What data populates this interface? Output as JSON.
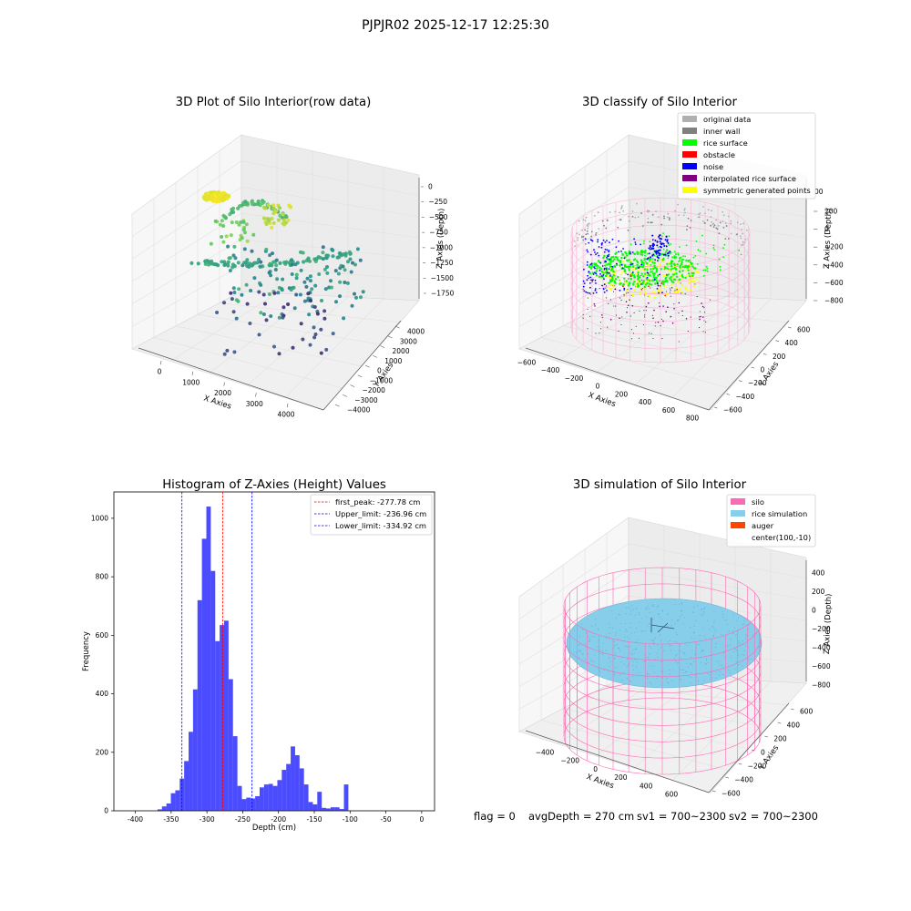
{
  "figure_title": "PJPJR02 2025-12-17 12:25:30",
  "footer": {
    "flag": "flag = 0",
    "avg_depth": "avgDepth = 270 cm",
    "sv1": "sv1 = 700~2300",
    "sv2": "sv2 = 700~2300"
  },
  "chart_data": [
    {
      "type": "scatter",
      "projection": "3d",
      "title": "3D Plot of Silo Interior(row data)",
      "xlabel": "X Axies",
      "ylabel": "Y Axies",
      "zlabel": "Z Axies (Depth)",
      "x_ticks": [
        "0",
        "1000",
        "2000",
        "3000",
        "4000"
      ],
      "y_ticks": [
        "−4000",
        "−3000",
        "−2000",
        "−1000",
        "0",
        "1000",
        "2000",
        "3000",
        "4000"
      ],
      "z_ticks": [
        "0",
        "−250",
        "−500",
        "−750",
        "−1000",
        "−1250",
        "−1500",
        "−1750"
      ],
      "colormap": "viridis"
    },
    {
      "type": "scatter",
      "projection": "3d",
      "title": "3D classify of Silo Interior",
      "xlabel": "X Axies",
      "ylabel": "Y Axies",
      "zlabel": "Z Axies (Depth)",
      "x_ticks": [
        "−600",
        "−400",
        "−200",
        "0",
        "200",
        "400",
        "600",
        "800"
      ],
      "y_ticks": [
        "−600",
        "−400",
        "−200",
        "0",
        "200",
        "400",
        "600"
      ],
      "z_ticks": [
        "200",
        "0",
        "−200",
        "−400",
        "−600",
        "−800"
      ],
      "z_tick_partial": "00",
      "legend_position": "upper-right",
      "legend": [
        {
          "label": "original data",
          "color": "#b0b0b0"
        },
        {
          "label": "inner wall",
          "color": "#808080"
        },
        {
          "label": "rice surface",
          "color": "#00ff00"
        },
        {
          "label": "obstacle",
          "color": "#ff0000"
        },
        {
          "label": "noise",
          "color": "#0000ff"
        },
        {
          "label": "interpolated rice surface",
          "color": "#800080"
        },
        {
          "label": "symmetric generated points",
          "color": "#ffff00"
        }
      ]
    },
    {
      "type": "bar",
      "subtype": "histogram",
      "title": "Histogram of Z-Axies (Height) Values",
      "xlabel": "Depth (cm)",
      "ylabel": "Frequency",
      "xlim": [
        -430,
        18
      ],
      "ylim": [
        0,
        1090
      ],
      "x_ticks": [
        -400,
        -350,
        -300,
        -250,
        -200,
        -150,
        -100,
        -50,
        0
      ],
      "y_ticks": [
        0,
        200,
        400,
        600,
        800,
        1000
      ],
      "bin_width": 6.2,
      "bin_start": -369,
      "values": [
        5,
        15,
        25,
        60,
        70,
        110,
        170,
        270,
        415,
        720,
        930,
        1040,
        820,
        580,
        635,
        650,
        450,
        255,
        85,
        40,
        45,
        42,
        50,
        80,
        90,
        92,
        85,
        105,
        140,
        160,
        220,
        190,
        145,
        90,
        30,
        22,
        65,
        10,
        8,
        12,
        12,
        6,
        90
      ],
      "bar_color": "#0000ff",
      "bar_alpha": 0.7,
      "legend_position": "upper-right",
      "lines": [
        {
          "label": "first_peak: -277.78 cm",
          "x": -277.78,
          "color": "#ff0000"
        },
        {
          "label": "Upper_limit: -236.96 cm",
          "x": -236.96,
          "color": "#0000ff"
        },
        {
          "label": "Lower_limit: -334.92 cm",
          "x": -334.92,
          "color": "#0000ff"
        }
      ]
    },
    {
      "type": "surface",
      "projection": "3d",
      "title": "3D simulation of Silo Interior",
      "xlabel": "X Axies",
      "ylabel": "Y Axies",
      "zlabel": "Z Axies (Depth)",
      "x_ticks": [
        "−400",
        "−200",
        "0",
        "200",
        "400",
        "600"
      ],
      "y_ticks": [
        "−600",
        "−400",
        "−200",
        "0",
        "200",
        "400",
        "600"
      ],
      "z_ticks": [
        "400",
        "200",
        "0",
        "−200",
        "−400",
        "−600",
        "−800"
      ],
      "legend_position": "upper-right",
      "legend": [
        {
          "label": "silo",
          "color": "#ff69b4"
        },
        {
          "label": "rice simulation",
          "color": "#87ceeb"
        },
        {
          "label": "auger",
          "color": "#ff4500"
        },
        {
          "label": "center(100,-10)",
          "color": ""
        }
      ]
    }
  ]
}
